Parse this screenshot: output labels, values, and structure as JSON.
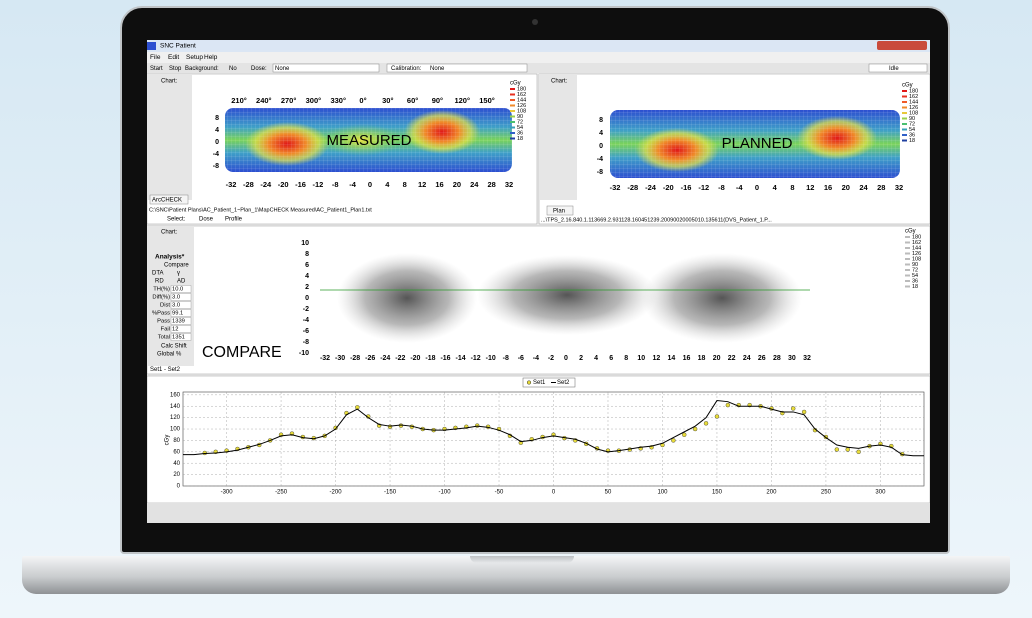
{
  "window": {
    "title": "SNC Patient"
  },
  "menu": [
    "File",
    "Edit",
    "Setup",
    "Help"
  ],
  "toolbar": {
    "start": "Start",
    "stop": "Stop",
    "background_label": "Background:",
    "background_value": "No",
    "dose_label": "Dose:",
    "dose_value": "None",
    "calibration_label": "Calibration:",
    "calibration_value": "None",
    "status": "Idle"
  },
  "measured": {
    "chart_button": "Chart:",
    "label": "MEASURED",
    "top_ticks": [
      "210°",
      "240°",
      "270°",
      "300°",
      "330°",
      "0°",
      "30°",
      "60°",
      "90°",
      "120°",
      "150°"
    ],
    "left_ticks": [
      "8",
      "4",
      "0",
      "-4",
      "-8"
    ],
    "bottom_ticks": [
      "-32",
      "-28",
      "-24",
      "-20",
      "-16",
      "-12",
      "-8",
      "-4",
      "0",
      "4",
      "8",
      "12",
      "16",
      "20",
      "24",
      "28",
      "32"
    ],
    "legend_unit": "cGy",
    "legend": [
      "180",
      "162",
      "144",
      "126",
      "108",
      "90",
      "72",
      "54",
      "36",
      "18"
    ],
    "device": "ArcCHECK",
    "path": "C:\\SNC\\Patient Plans\\AC_Patient_1~Plan_1\\MapCHECK Measured\\AC_Patient1_Plan1.txt",
    "select_label": "Select:",
    "dose": "Dose",
    "profile": "Profile"
  },
  "planned": {
    "chart_button": "Chart:",
    "label": "PLANNED",
    "left_ticks": [
      "8",
      "4",
      "0",
      "-4",
      "-8"
    ],
    "bottom_ticks": [
      "-32",
      "-28",
      "-24",
      "-20",
      "-16",
      "-12",
      "-8",
      "-4",
      "0",
      "4",
      "8",
      "12",
      "16",
      "20",
      "24",
      "28",
      "32"
    ],
    "legend_unit": "cGy",
    "legend": [
      "180",
      "162",
      "144",
      "126",
      "108",
      "90",
      "72",
      "54",
      "36",
      "18"
    ],
    "plan_button": "Plan",
    "path": "...\\TPS_2.16.840.1.113669.2.931128.160451239.20090020005010.135611(DVS_Patient_1.P..."
  },
  "compare": {
    "chart_button": "Chart:",
    "analysis": {
      "title": "Analysis*",
      "compare": "Compare",
      "dta": "DTA",
      "gamma": "γ",
      "rd": "RD",
      "ad": "AD",
      "fields": [
        {
          "label": "TH(%)",
          "value": "10.0"
        },
        {
          "label": "Diff(%)",
          "value": "3.0"
        },
        {
          "label": "Dist",
          "value": "3.0"
        },
        {
          "label": "%Pass",
          "value": "99.1"
        },
        {
          "label": "Pass",
          "value": "1339"
        },
        {
          "label": "Fail",
          "value": "12"
        },
        {
          "label": "Total",
          "value": "1351"
        }
      ],
      "calc_shift": "Calc Shift",
      "global": "Global %"
    },
    "label": "COMPARE",
    "left_ticks": [
      "10",
      "8",
      "6",
      "4",
      "2",
      "0",
      "-2",
      "-4",
      "-6",
      "-8",
      "-10"
    ],
    "bottom_ticks": [
      "-32",
      "-30",
      "-28",
      "-26",
      "-24",
      "-22",
      "-20",
      "-18",
      "-16",
      "-14",
      "-12",
      "-10",
      "-8",
      "-6",
      "-4",
      "-2",
      "0",
      "2",
      "4",
      "6",
      "8",
      "10",
      "12",
      "14",
      "16",
      "18",
      "20",
      "22",
      "24",
      "26",
      "28",
      "30",
      "32"
    ],
    "legend_unit": "cGy",
    "legend": [
      "180",
      "162",
      "144",
      "126",
      "108",
      "90",
      "72",
      "54",
      "36",
      "18"
    ],
    "status": "Set1 - Set2"
  },
  "chart_data": {
    "type": "line",
    "ylabel": "cGy",
    "x": [
      -340,
      -330,
      -320,
      -310,
      -300,
      -290,
      -280,
      -270,
      -260,
      -250,
      -240,
      -230,
      -220,
      -210,
      -200,
      -190,
      -180,
      -170,
      -160,
      -150,
      -140,
      -130,
      -120,
      -110,
      -100,
      -90,
      -80,
      -70,
      -60,
      -50,
      -40,
      -30,
      -20,
      -10,
      0,
      10,
      20,
      30,
      40,
      50,
      60,
      70,
      80,
      90,
      100,
      110,
      120,
      130,
      140,
      150,
      160,
      170,
      180,
      190,
      200,
      210,
      220,
      230,
      240,
      250,
      260,
      270,
      280,
      290,
      300,
      310,
      320,
      330,
      340
    ],
    "series": [
      {
        "name": "Set1",
        "color": "#e8dc3a",
        "values": [
          null,
          null,
          58,
          60,
          62,
          65,
          68,
          72,
          80,
          90,
          92,
          86,
          84,
          88,
          102,
          128,
          138,
          122,
          106,
          104,
          106,
          104,
          100,
          98,
          100,
          102,
          104,
          106,
          104,
          100,
          88,
          76,
          82,
          86,
          90,
          84,
          80,
          74,
          66,
          62,
          62,
          64,
          66,
          68,
          72,
          80,
          90,
          100,
          110,
          122,
          142,
          142,
          142,
          140,
          136,
          128,
          136,
          130,
          98,
          86,
          64,
          64,
          60,
          70,
          74,
          70,
          56,
          null,
          null
        ]
      },
      {
        "name": "Set2",
        "color": "#000000",
        "values": [
          55,
          55,
          57,
          58,
          60,
          63,
          68,
          73,
          80,
          88,
          90,
          85,
          83,
          88,
          100,
          125,
          135,
          120,
          108,
          105,
          107,
          105,
          100,
          98,
          98,
          100,
          102,
          105,
          103,
          98,
          90,
          78,
          80,
          85,
          88,
          85,
          82,
          75,
          65,
          60,
          62,
          65,
          68,
          70,
          75,
          85,
          95,
          105,
          120,
          150,
          148,
          140,
          140,
          140,
          135,
          130,
          130,
          125,
          100,
          85,
          72,
          68,
          66,
          70,
          72,
          68,
          55,
          53,
          53
        ]
      }
    ],
    "xlim": [
      -340,
      340
    ],
    "ylim": [
      0,
      165
    ],
    "xticks": [
      -300,
      -250,
      -200,
      -150,
      -100,
      -50,
      0,
      50,
      100,
      150,
      200,
      250,
      300
    ],
    "yticks": [
      0,
      20,
      40,
      60,
      80,
      100,
      120,
      140,
      160
    ],
    "grid": true
  }
}
